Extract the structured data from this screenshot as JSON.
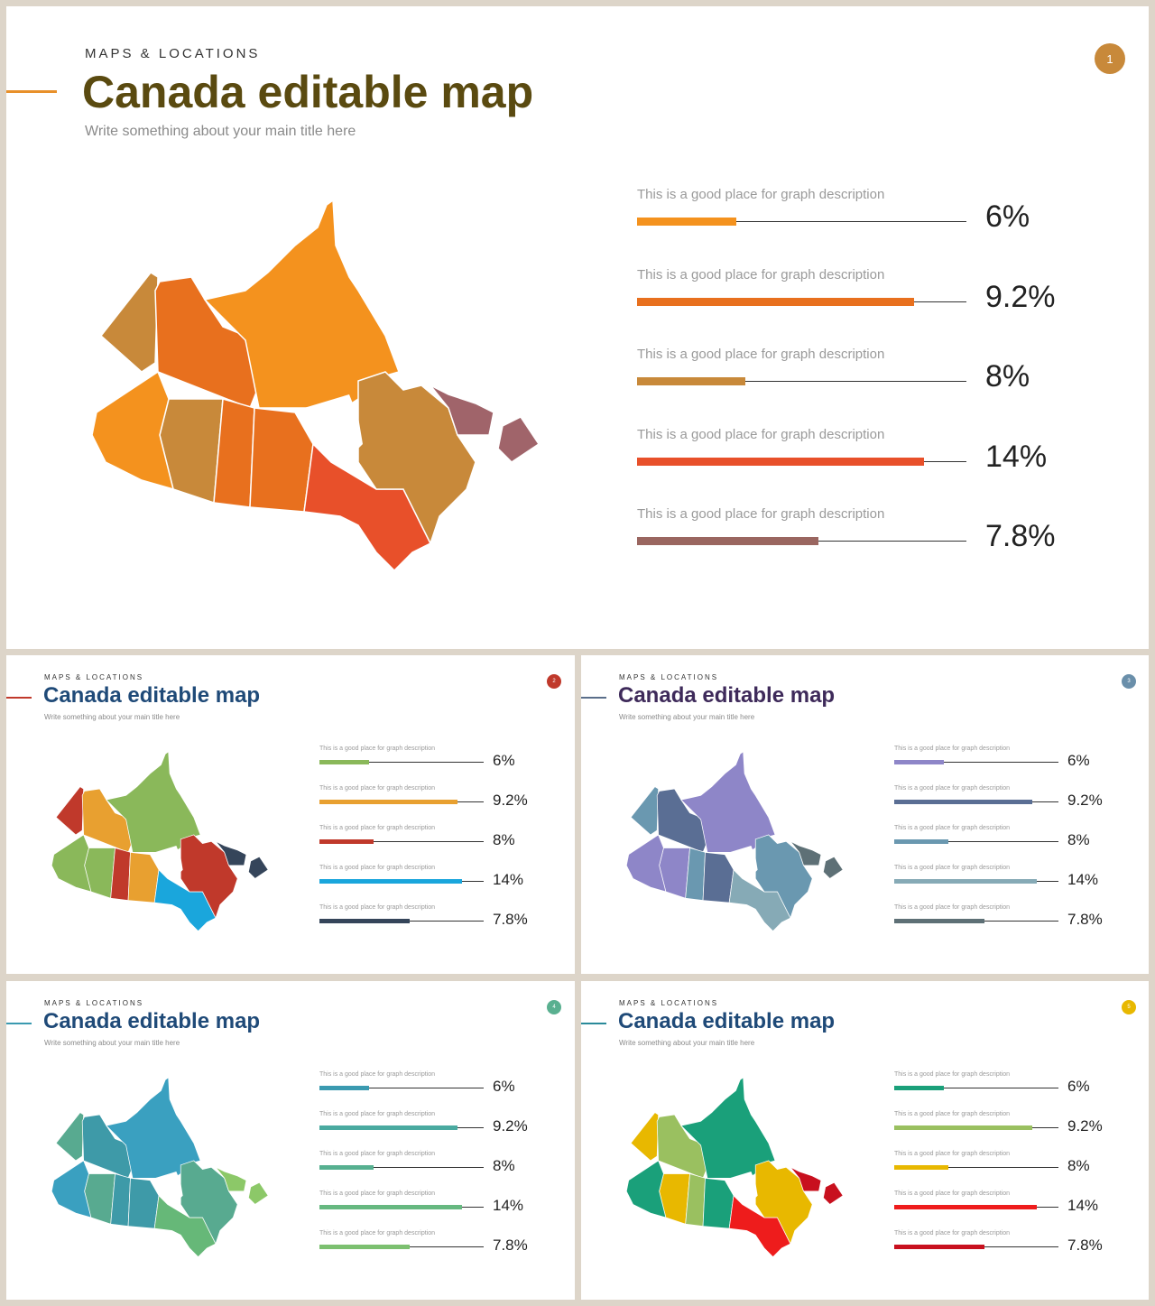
{
  "slides": [
    {
      "kicker": "MAPS & LOCATIONS",
      "title": "Canada editable map",
      "subtitle": "Write something about your main title here",
      "number": "1",
      "title_color": "#5a4a10",
      "badge_color": "#c8893a",
      "accent_color": "#e8902a",
      "region_colors": [
        "#c8893a",
        "#e8701e",
        "#f4921e",
        "#c8893a",
        "#e8701e",
        "#e8701e",
        "#e8502a",
        "#c8893a",
        "#a0646a",
        "#f4921e"
      ],
      "bars": [
        {
          "description": "This is a good place for graph description",
          "value_label": "6%",
          "fill": 0.3,
          "color": "#f4921e"
        },
        {
          "description": "This is a good place for graph description",
          "value_label": "9.2%",
          "fill": 0.84,
          "color": "#e8701e"
        },
        {
          "description": "This is a good place for graph description",
          "value_label": "8%",
          "fill": 0.33,
          "color": "#c8893a"
        },
        {
          "description": "This is a good place for graph description",
          "value_label": "14%",
          "fill": 0.87,
          "color": "#e8502a"
        },
        {
          "description": "This is a good place for graph description",
          "value_label": "7.8%",
          "fill": 0.55,
          "color": "#9a6660"
        }
      ]
    },
    {
      "kicker": "MAPS & LOCATIONS",
      "title": "Canada editable map",
      "subtitle": "Write something about your main title here",
      "number": "2",
      "title_color": "#1f4a78",
      "badge_color": "#c0392b",
      "accent_color": "#c0392b",
      "region_colors": [
        "#c0392b",
        "#e8a030",
        "#8ab85a",
        "#8ab85a",
        "#c0392b",
        "#e8a030",
        "#1aa6dc",
        "#c0392b",
        "#35455a",
        "#8ab85a"
      ],
      "bars": [
        {
          "description": "This is a good place for graph description",
          "value_label": "6%",
          "fill": 0.3,
          "color": "#8ab85a"
        },
        {
          "description": "This is a good place for graph description",
          "value_label": "9.2%",
          "fill": 0.84,
          "color": "#e8a030"
        },
        {
          "description": "This is a good place for graph description",
          "value_label": "8%",
          "fill": 0.33,
          "color": "#c0392b"
        },
        {
          "description": "This is a good place for graph description",
          "value_label": "14%",
          "fill": 0.87,
          "color": "#1aa6dc"
        },
        {
          "description": "This is a good place for graph description",
          "value_label": "7.8%",
          "fill": 0.55,
          "color": "#35455a"
        }
      ]
    },
    {
      "kicker": "MAPS & LOCATIONS",
      "title": "Canada editable map",
      "subtitle": "Write something about your main title here",
      "number": "3",
      "title_color": "#3e2a5a",
      "badge_color": "#6a8faa",
      "accent_color": "#5a6e8a",
      "region_colors": [
        "#6a98b0",
        "#5a6e94",
        "#8e86c8",
        "#8e86c8",
        "#6a98b0",
        "#5a6e94",
        "#86aab6",
        "#6a98b0",
        "#5e7076",
        "#8e86c8"
      ],
      "bars": [
        {
          "description": "This is a good place for graph description",
          "value_label": "6%",
          "fill": 0.3,
          "color": "#8e86c8"
        },
        {
          "description": "This is a good place for graph description",
          "value_label": "9.2%",
          "fill": 0.84,
          "color": "#5a6e94"
        },
        {
          "description": "This is a good place for graph description",
          "value_label": "8%",
          "fill": 0.33,
          "color": "#6a98b0"
        },
        {
          "description": "This is a good place for graph description",
          "value_label": "14%",
          "fill": 0.87,
          "color": "#86aab6"
        },
        {
          "description": "This is a good place for graph description",
          "value_label": "7.8%",
          "fill": 0.55,
          "color": "#5e7076"
        }
      ]
    },
    {
      "kicker": "MAPS & LOCATIONS",
      "title": "Canada editable map",
      "subtitle": "Write something about your main title here",
      "number": "4",
      "title_color": "#1f4a78",
      "badge_color": "#5ab090",
      "accent_color": "#3a9ab0",
      "region_colors": [
        "#58aa90",
        "#3e9aa8",
        "#3aa0c0",
        "#58aa90",
        "#3e9aa8",
        "#3e9aa8",
        "#66b878",
        "#58aa90",
        "#8cc868",
        "#3aa0c0"
      ],
      "bars": [
        {
          "description": "This is a good place for graph description",
          "value_label": "6%",
          "fill": 0.3,
          "color": "#3a9ab0"
        },
        {
          "description": "This is a good place for graph description",
          "value_label": "9.2%",
          "fill": 0.84,
          "color": "#4aaaa0"
        },
        {
          "description": "This is a good place for graph description",
          "value_label": "8%",
          "fill": 0.33,
          "color": "#56b090"
        },
        {
          "description": "This is a good place for graph description",
          "value_label": "14%",
          "fill": 0.87,
          "color": "#66b880"
        },
        {
          "description": "This is a good place for graph description",
          "value_label": "7.8%",
          "fill": 0.55,
          "color": "#7cc070"
        }
      ]
    },
    {
      "kicker": "MAPS & LOCATIONS",
      "title": "Canada editable map",
      "subtitle": "Write something about your main title here",
      "number": "5",
      "title_color": "#1f4a78",
      "badge_color": "#e8b800",
      "accent_color": "#2a8a9a",
      "region_colors": [
        "#e8b800",
        "#9ac060",
        "#1aa07a",
        "#e8b800",
        "#9ac060",
        "#1aa07a",
        "#ee1c1c",
        "#e8b800",
        "#c8101e",
        "#1aa07a"
      ],
      "bars": [
        {
          "description": "This is a good place for graph description",
          "value_label": "6%",
          "fill": 0.3,
          "color": "#1aa07a"
        },
        {
          "description": "This is a good place for graph description",
          "value_label": "9.2%",
          "fill": 0.84,
          "color": "#9ac060"
        },
        {
          "description": "This is a good place for graph description",
          "value_label": "8%",
          "fill": 0.33,
          "color": "#e8b800"
        },
        {
          "description": "This is a good place for graph description",
          "value_label": "14%",
          "fill": 0.87,
          "color": "#ee1c1c"
        },
        {
          "description": "This is a good place for graph description",
          "value_label": "7.8%",
          "fill": 0.55,
          "color": "#c8101e"
        }
      ]
    }
  ]
}
